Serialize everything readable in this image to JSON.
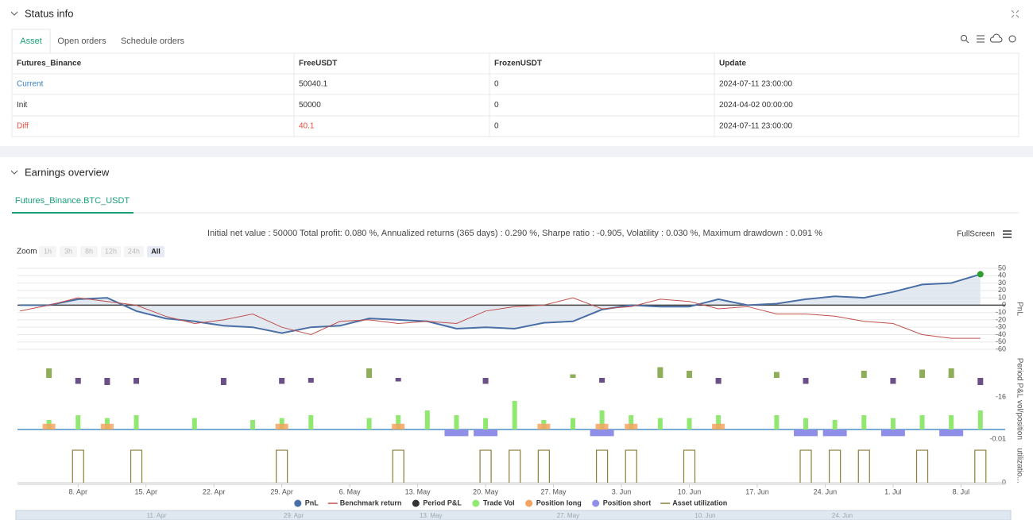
{
  "status_info": {
    "title": "Status info",
    "tabs": [
      "Asset",
      "Open orders",
      "Schedule orders"
    ],
    "table": {
      "header": [
        "Futures_Binance",
        "FreeUSDT",
        "FrozenUSDT",
        "Update"
      ],
      "rows": [
        [
          "Current",
          "50040.1",
          "0",
          "2024-07-11 23:00:00"
        ],
        [
          "Init",
          "50000",
          "0",
          "2024-04-02 00:00:00"
        ],
        [
          "Diff",
          "40.1",
          "0",
          "2024-07-11 23:00:00"
        ]
      ]
    }
  },
  "earnings_overview": {
    "title": "Earnings overview",
    "tab": "Futures_Binance.BTC_USDT",
    "summary": "Initial net value : 50000 Total profit: 0.080 %, Annualized returns (365 days) : 0.290 %, Sharpe ratio : -0.905, Volatility : 0.030 %, Maximum drawdown : 0.091 %",
    "fullscreen": "FullScreen",
    "zoom_label": "Zoom",
    "zoom_buttons": [
      "1h",
      "3h",
      "8h",
      "12h",
      "24h",
      "All"
    ]
  },
  "chart_data": [
    {
      "type": "line",
      "ylabel": "PnL",
      "xlim": [
        "2. Apr",
        "11. Jul"
      ],
      "ylim": [
        -60,
        50
      ],
      "yticks": [
        50,
        40,
        30,
        20,
        10,
        0,
        -10,
        -20,
        -30,
        -40,
        -50,
        -60
      ],
      "grid": true,
      "x": [
        "2. Apr",
        "5. Apr",
        "8. Apr",
        "11. Apr",
        "14. Apr",
        "17. Apr",
        "20. Apr",
        "23. Apr",
        "26. Apr",
        "29. Apr",
        "2. May",
        "5. May",
        "8. May",
        "11. May",
        "14. May",
        "17. May",
        "20. May",
        "23. May",
        "26. May",
        "29. May",
        "1. Jun",
        "4. Jun",
        "7. Jun",
        "10. Jun",
        "13. Jun",
        "16. Jun",
        "19. Jun",
        "22. Jun",
        "25. Jun",
        "28. Jun",
        "1. Jul",
        "4. Jul",
        "7. Jul",
        "10. Jul"
      ],
      "series": [
        {
          "name": "PnL",
          "color": "#4a6fa5",
          "legend_symbol": "circle",
          "values": [
            0,
            0,
            8,
            10,
            -8,
            -18,
            -22,
            -28,
            -30,
            -38,
            -30,
            -28,
            -18,
            -20,
            -22,
            -32,
            -30,
            -32,
            -24,
            -22,
            -6,
            0,
            -2,
            -2,
            8,
            0,
            2,
            8,
            12,
            10,
            18,
            28,
            30,
            42
          ]
        },
        {
          "name": "Benchmark return",
          "color": "#c0504d",
          "legend_symbol": "line",
          "values": [
            -8,
            0,
            10,
            5,
            0,
            -15,
            -25,
            -20,
            -12,
            -30,
            -40,
            -22,
            -20,
            -25,
            -22,
            -25,
            -8,
            -2,
            0,
            10,
            -5,
            -2,
            8,
            5,
            -5,
            -2,
            -12,
            -12,
            -15,
            -22,
            -25,
            -40,
            -45,
            -45
          ]
        }
      ]
    },
    {
      "type": "bar",
      "ylabel": "Period P&L",
      "xlim": [
        "2. Apr",
        "11. Jul"
      ],
      "ylim": [
        -16,
        16
      ],
      "yticks": [
        -16
      ],
      "x": [
        "2. Apr",
        "5. Apr",
        "8. Apr",
        "11. Apr",
        "14. Apr",
        "17. Apr",
        "20. Apr",
        "23. Apr",
        "26. Apr",
        "29. Apr",
        "2. May",
        "5. May",
        "8. May",
        "11. May",
        "14. May",
        "17. May",
        "20. May",
        "23. May",
        "26. May",
        "29. May",
        "1. Jun",
        "4. Jun",
        "7. Jun",
        "10. Jun",
        "13. Jun",
        "16. Jun",
        "19. Jun",
        "22. Jun",
        "25. Jun",
        "28. Jun",
        "1. Jul",
        "4. Jul",
        "7. Jul",
        "10. Jul"
      ],
      "series": [
        {
          "name": "Period P&L",
          "color": "#333333",
          "positive_color": "#8fae5a",
          "negative_color": "#6b5088",
          "legend_symbol": "circle",
          "values": [
            0,
            8,
            -5,
            -6,
            -5,
            0,
            0,
            -6,
            0,
            -5,
            -4,
            0,
            8,
            -3,
            0,
            0,
            -5,
            0,
            0,
            3,
            -4,
            0,
            9,
            6,
            -5,
            0,
            5,
            -5,
            0,
            6,
            -5,
            7,
            8,
            -6
          ]
        }
      ]
    },
    {
      "type": "bar",
      "ylabel": "vol/position",
      "xlim": [
        "2. Apr",
        "11. Jul"
      ],
      "ylim": [
        -0.01,
        0.03
      ],
      "yticks": [
        -0.01
      ],
      "x": [
        "2. Apr",
        "5. Apr",
        "8. Apr",
        "11. Apr",
        "14. Apr",
        "17. Apr",
        "20. Apr",
        "23. Apr",
        "26. Apr",
        "29. Apr",
        "2. May",
        "5. May",
        "8. May",
        "11. May",
        "14. May",
        "17. May",
        "20. May",
        "23. May",
        "26. May",
        "29. May",
        "1. Jun",
        "4. Jun",
        "7. Jun",
        "10. Jun",
        "13. Jun",
        "16. Jun",
        "19. Jun",
        "22. Jun",
        "25. Jun",
        "28. Jun",
        "1. Jul",
        "4. Jul",
        "7. Jul",
        "10. Jul"
      ],
      "series": [
        {
          "name": "Trade Vol",
          "color": "#90e870",
          "legend_symbol": "circle",
          "values": [
            0,
            0.01,
            0.015,
            0.012,
            0.015,
            0,
            0.012,
            0,
            0.01,
            0.012,
            0.015,
            0,
            0.012,
            0.015,
            0.02,
            0.015,
            0.012,
            0.03,
            0.01,
            0.012,
            0.02,
            0.015,
            0.012,
            0.012,
            0.015,
            0,
            0.015,
            0.012,
            0.01,
            0.015,
            0.012,
            0.015,
            0.015,
            0.02
          ]
        },
        {
          "name": "Position long",
          "color": "#f4a460",
          "legend_symbol": "circle",
          "values": [
            0,
            0.006,
            0,
            0.006,
            0,
            0,
            0,
            0,
            0,
            0.006,
            0,
            0,
            0,
            0.006,
            0,
            0,
            0,
            0,
            0.006,
            0,
            0.006,
            0.006,
            0,
            0,
            0.006,
            0,
            0,
            0,
            0,
            0,
            0,
            0,
            0,
            0
          ]
        },
        {
          "name": "Position short",
          "color": "#8f8fe8",
          "legend_symbol": "circle",
          "values": [
            0,
            0,
            0,
            0,
            0,
            0,
            0,
            0,
            0,
            0,
            0,
            0,
            0,
            0,
            0,
            -0.007,
            -0.007,
            0,
            0,
            0,
            -0.007,
            0,
            0,
            0,
            0,
            0,
            0,
            -0.007,
            -0.007,
            0,
            -0.007,
            0,
            -0.007,
            0
          ]
        }
      ]
    },
    {
      "type": "step",
      "ylabel": "utilizatio...",
      "xlim": [
        "2. Apr",
        "11. Jul"
      ],
      "ylim": [
        0,
        1.05
      ],
      "yticks": [
        0
      ],
      "x": [
        "2. Apr",
        "5. Apr",
        "8. Apr",
        "11. Apr",
        "14. Apr",
        "17. Apr",
        "20. Apr",
        "23. Apr",
        "26. Apr",
        "29. Apr",
        "2. May",
        "5. May",
        "8. May",
        "11. May",
        "14. May",
        "17. May",
        "20. May",
        "23. May",
        "26. May",
        "29. May",
        "1. Jun",
        "4. Jun",
        "7. Jun",
        "10. Jun",
        "13. Jun",
        "16. Jun",
        "19. Jun",
        "22. Jun",
        "25. Jun",
        "28. Jun",
        "1. Jul",
        "4. Jul",
        "7. Jul",
        "10. Jul"
      ],
      "xticks": [
        "8. Apr",
        "15. Apr",
        "22. Apr",
        "29. Apr",
        "6. May",
        "13. May",
        "20. May",
        "27. May",
        "3. Jun",
        "10. Jun",
        "17. Jun",
        "24. Jun",
        "1. Jul",
        "8. Jul"
      ],
      "series": [
        {
          "name": "Asset utilization",
          "color": "#8b7d3a",
          "legend_symbol": "line",
          "values": [
            0,
            0,
            1,
            0,
            1,
            0,
            0,
            0,
            0,
            1,
            0,
            0,
            0,
            1,
            0,
            0,
            1,
            1,
            1,
            0,
            1,
            1,
            0,
            1,
            0,
            0,
            0,
            1,
            1,
            1,
            0,
            1,
            0,
            1
          ]
        }
      ]
    }
  ],
  "navigator": {
    "labels": [
      "11. Apr",
      "29. Apr",
      "13. May",
      "27. May",
      "10. Jun",
      "24. Jun"
    ]
  }
}
